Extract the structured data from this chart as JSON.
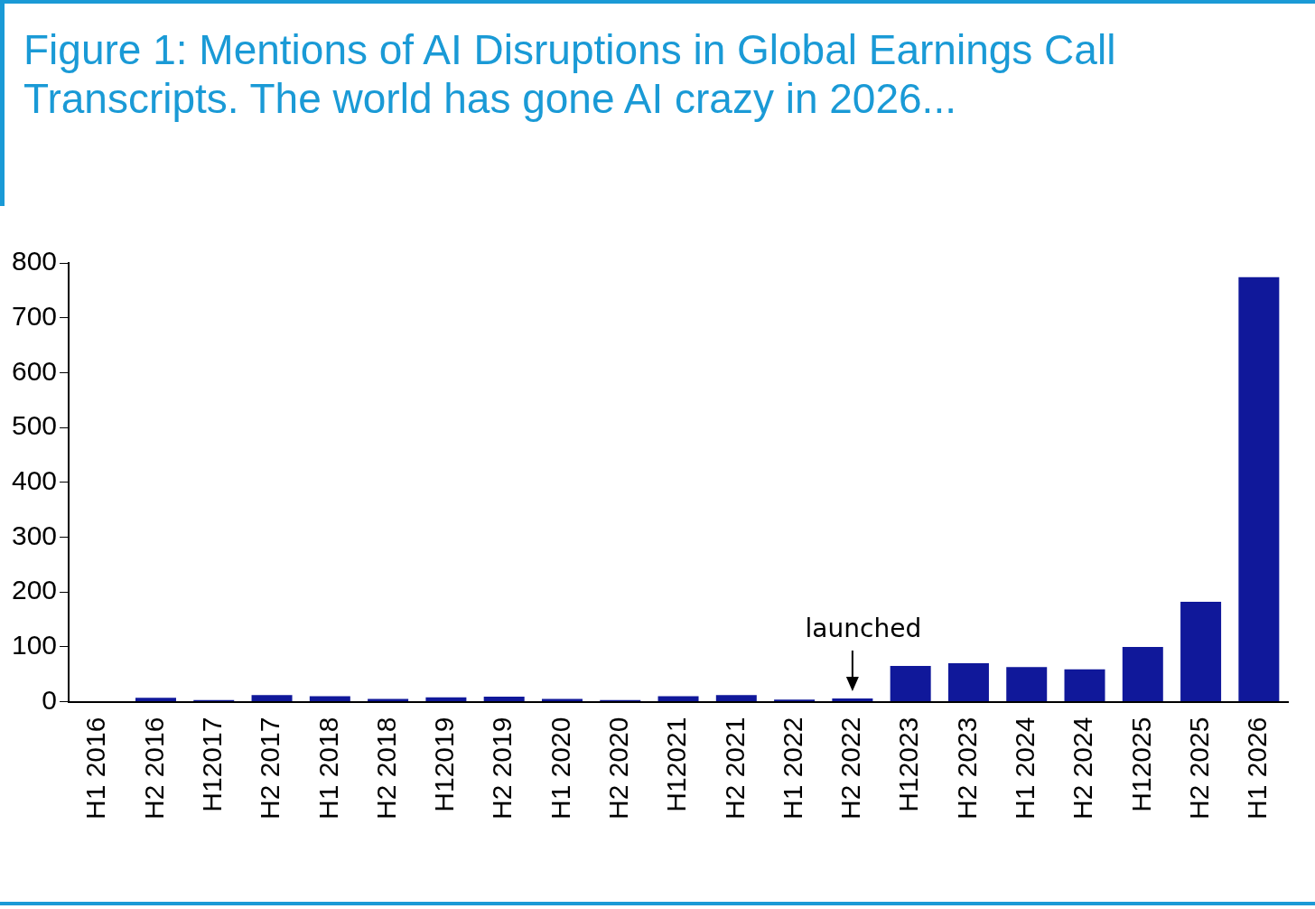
{
  "chart_data": {
    "type": "bar",
    "title": "Figure 1: Mentions of AI Disruptions in Global Earnings Call Transcripts. The world has gone AI crazy in 2026...",
    "categories": [
      "H1 2016",
      "H2 2016",
      "H12017",
      "H2 2017",
      "H1 2018",
      "H2 2018",
      "H12019",
      "H2 2019",
      "H1 2020",
      "H2 2020",
      "H12021",
      "H2 2021",
      "H1 2022",
      "H2 2022",
      "H12023",
      "H2 2023",
      "H1 2024",
      "H2 2024",
      "H12025",
      "H2 2025",
      "H1 2026"
    ],
    "values": [
      null,
      7,
      3,
      12,
      10,
      5,
      8,
      9,
      5,
      3,
      10,
      12,
      4,
      6,
      65,
      70,
      63,
      59,
      100,
      182,
      774
    ],
    "color": "#10189a",
    "ylim": [
      0,
      800
    ],
    "yticks": [
      0,
      100,
      200,
      300,
      400,
      500,
      600,
      700,
      800
    ],
    "grid": false,
    "legend": false,
    "annotations": [
      {
        "text": "launched",
        "x": "H2 2022",
        "y": 6
      }
    ]
  }
}
